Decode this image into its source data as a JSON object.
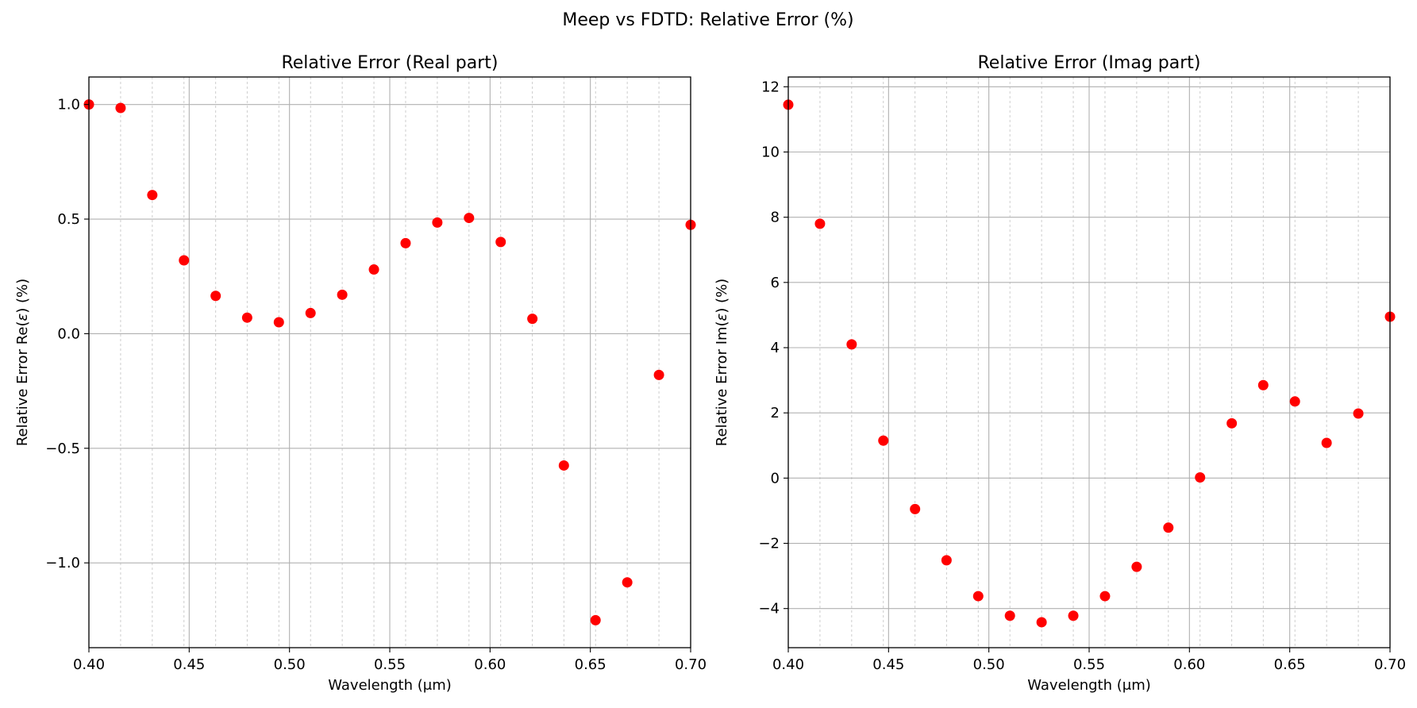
{
  "figure": {
    "suptitle": "Meep vs FDTD: Relative Error (%)"
  },
  "chart_data": [
    {
      "type": "scatter",
      "title": "Relative Error (Real part)",
      "xlabel": "Wavelength (μm)",
      "ylabel_prefix": "Relative Error Re(",
      "ylabel_symbol": "ε",
      "ylabel_suffix": ") (%)",
      "xlim": [
        0.4,
        0.7
      ],
      "ylim": [
        -1.37,
        1.12
      ],
      "xticks": [
        0.4,
        0.45,
        0.5,
        0.55,
        0.6,
        0.65,
        0.7
      ],
      "xtick_labels": [
        "0.40",
        "0.45",
        "0.50",
        "0.55",
        "0.60",
        "0.65",
        "0.70"
      ],
      "yticks": [
        -1.0,
        -0.5,
        0.0,
        0.5,
        1.0
      ],
      "ytick_labels": [
        "−1.0",
        "−0.5",
        "0.0",
        "0.5",
        "1.0"
      ],
      "minor_xticks": [
        0.4158,
        0.4316,
        0.4474,
        0.4632,
        0.4789,
        0.4947,
        0.5105,
        0.5263,
        0.5421,
        0.5579,
        0.5737,
        0.5895,
        0.6053,
        0.6211,
        0.6368,
        0.6526,
        0.6684,
        0.6842
      ],
      "grid": true,
      "marker_color": "#ff0000",
      "x": [
        0.4,
        0.4158,
        0.4316,
        0.4474,
        0.4632,
        0.4789,
        0.4947,
        0.5105,
        0.5263,
        0.5421,
        0.5579,
        0.5737,
        0.5895,
        0.6053,
        0.6211,
        0.6368,
        0.6526,
        0.6684,
        0.6842,
        0.7
      ],
      "y": [
        1.0,
        0.985,
        0.605,
        0.32,
        0.165,
        0.07,
        0.05,
        0.09,
        0.17,
        0.28,
        0.395,
        0.485,
        0.505,
        0.4,
        0.065,
        -0.575,
        -1.25,
        -1.085,
        -0.18,
        0.475
      ]
    },
    {
      "type": "scatter",
      "title": "Relative Error (Imag part)",
      "xlabel": "Wavelength (μm)",
      "ylabel_prefix": "Relative Error Im(",
      "ylabel_symbol": "ε",
      "ylabel_suffix": ") (%)",
      "xlim": [
        0.4,
        0.7
      ],
      "ylim": [
        -5.2,
        12.3
      ],
      "xticks": [
        0.4,
        0.45,
        0.5,
        0.55,
        0.6,
        0.65,
        0.7
      ],
      "xtick_labels": [
        "0.40",
        "0.45",
        "0.50",
        "0.55",
        "0.60",
        "0.65",
        "0.70"
      ],
      "yticks": [
        -4,
        -2,
        0,
        2,
        4,
        6,
        8,
        10,
        12
      ],
      "ytick_labels": [
        "−4",
        "−2",
        "0",
        "2",
        "4",
        "6",
        "8",
        "10",
        "12"
      ],
      "minor_xticks": [
        0.4158,
        0.4316,
        0.4474,
        0.4632,
        0.4789,
        0.4947,
        0.5105,
        0.5263,
        0.5421,
        0.5579,
        0.5737,
        0.5895,
        0.6053,
        0.6211,
        0.6368,
        0.6526,
        0.6684,
        0.6842
      ],
      "grid": true,
      "marker_color": "#ff0000",
      "x": [
        0.4,
        0.4158,
        0.4316,
        0.4474,
        0.4632,
        0.4789,
        0.4947,
        0.5105,
        0.5263,
        0.5421,
        0.5579,
        0.5737,
        0.5895,
        0.6053,
        0.6211,
        0.6368,
        0.6526,
        0.6684,
        0.6842,
        0.7
      ],
      "y": [
        11.45,
        7.8,
        4.1,
        1.15,
        -0.95,
        -2.52,
        -3.62,
        -4.22,
        -4.42,
        -4.22,
        -3.62,
        -2.72,
        -1.52,
        0.02,
        1.68,
        2.85,
        2.35,
        1.08,
        1.98,
        4.95
      ]
    }
  ]
}
